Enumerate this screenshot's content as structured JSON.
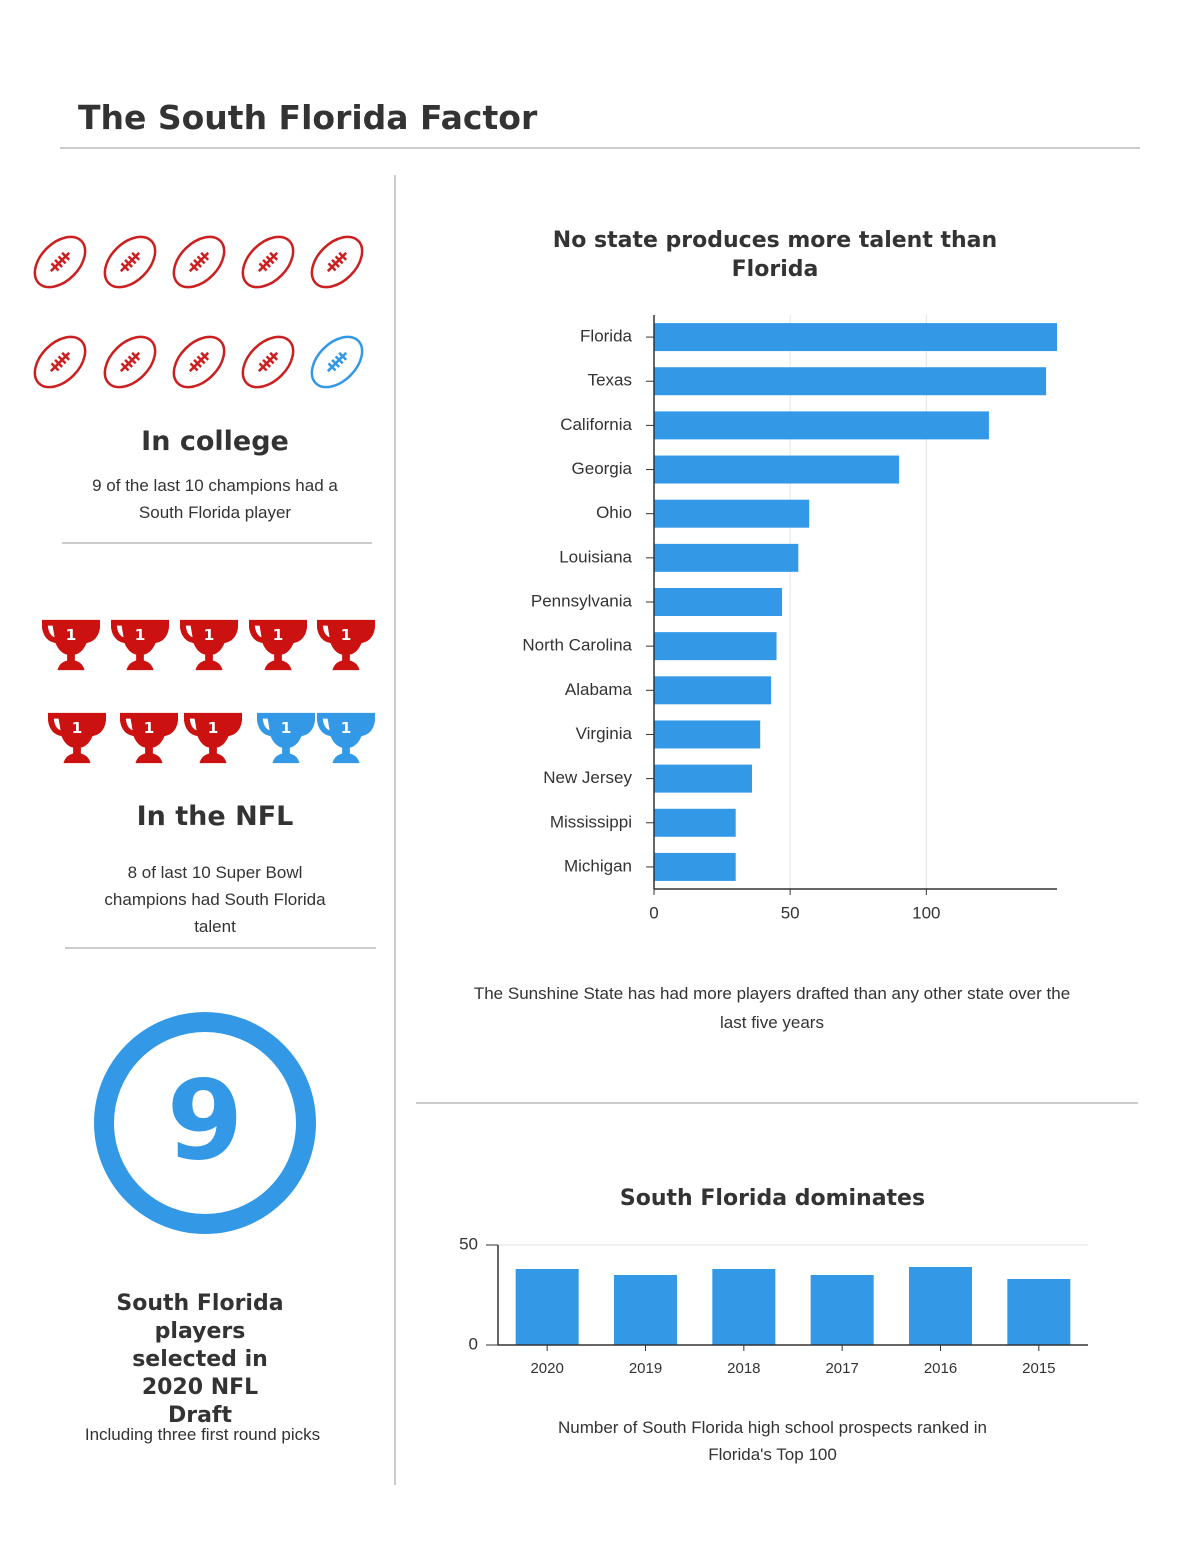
{
  "title": "The South Florida Factor",
  "college": {
    "heading": "In college",
    "text": "9 of the last 10 champions had a South Florida player"
  },
  "nfl": {
    "heading": "In the NFL",
    "text": "8 of last 10 Super Bowl champions had South Florida talent"
  },
  "draft": {
    "number": "9",
    "heading": "South Florida players selected in 2020 NFL Draft",
    "text": "Including three first round picks"
  },
  "chart_data": [
    {
      "type": "bar",
      "horizontal": true,
      "title": "No state produces more talent than Florida",
      "caption": "The Sunshine State has had more players drafted than any other state over the last five years",
      "categories": [
        "Florida",
        "Texas",
        "California",
        "Georgia",
        "Ohio",
        "Louisiana",
        "Pennsylvania",
        "North Carolina",
        "Alabama",
        "Virginia",
        "New Jersey",
        "Mississippi",
        "Michigan"
      ],
      "values": [
        148,
        144,
        123,
        90,
        57,
        53,
        47,
        45,
        43,
        39,
        36,
        30,
        30
      ],
      "color": "#3399e6",
      "xlim": [
        0,
        148
      ],
      "xticks": [
        0,
        50,
        100
      ],
      "grid": true
    },
    {
      "type": "bar",
      "title": "South Florida dominates",
      "caption": "Number of South Florida high school prospects ranked in Florida's Top 100",
      "categories": [
        "2020",
        "2019",
        "2018",
        "2017",
        "2016",
        "2015"
      ],
      "values": [
        38,
        35,
        38,
        35,
        39,
        33
      ],
      "color": "#3399e6",
      "ylim": [
        0,
        50
      ],
      "yticks": [
        0,
        50
      ],
      "grid": true
    }
  ]
}
